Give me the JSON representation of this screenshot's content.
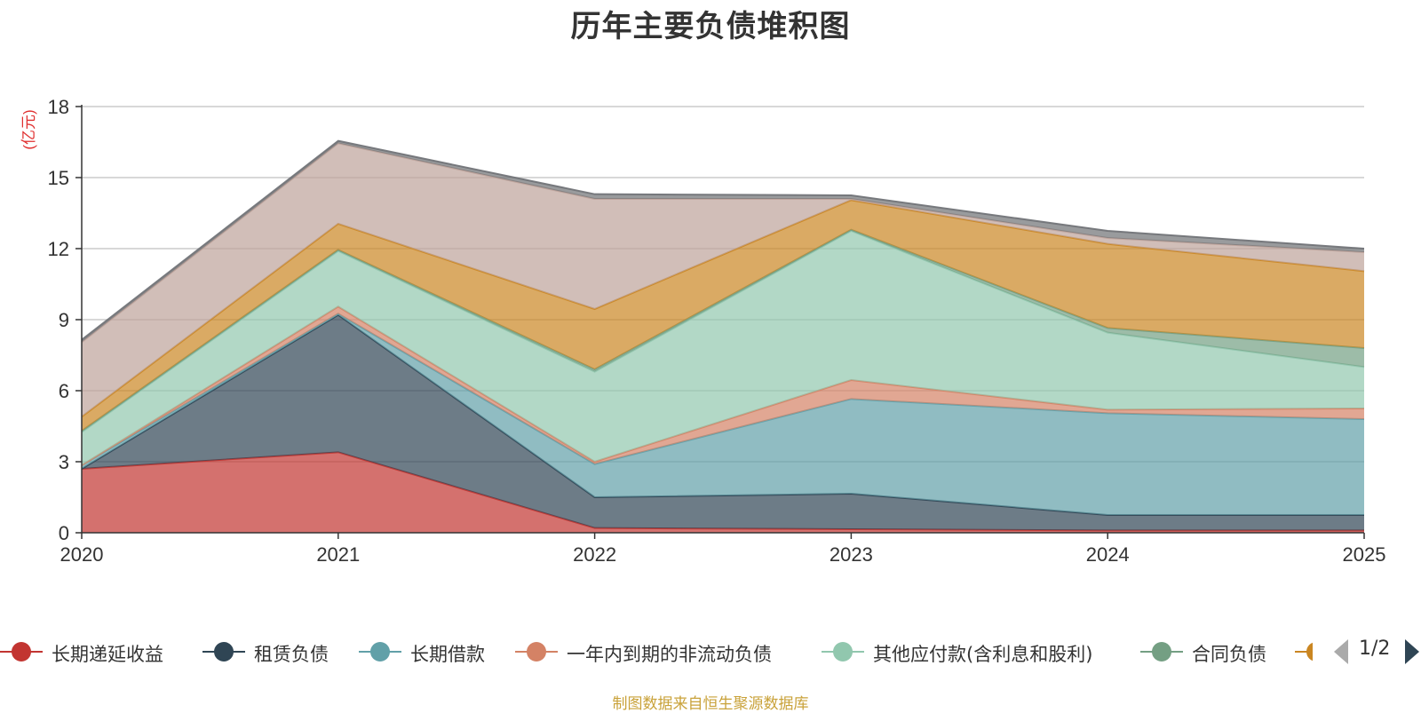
{
  "chart_data": {
    "type": "area",
    "title": "历年主要负债堆积图",
    "ylabel": "(亿元)",
    "xlabel": "",
    "categories": [
      "2020",
      "2021",
      "2022",
      "2023",
      "2024",
      "2025"
    ],
    "ylim": [
      0,
      18
    ],
    "yticks": [
      0,
      3,
      6,
      9,
      12,
      15,
      18
    ],
    "stacked": true,
    "grid": true,
    "series": [
      {
        "name": "长期递延收益",
        "color": "#c23531",
        "values": [
          2.7,
          3.4,
          0.2,
          0.15,
          0.1,
          0.1
        ]
      },
      {
        "name": "租赁负债",
        "color": "#2f4554",
        "values": [
          0.0,
          5.8,
          1.3,
          1.5,
          0.65,
          0.65
        ]
      },
      {
        "name": "长期借款",
        "color": "#61a0a8",
        "values": [
          0.15,
          0.05,
          1.4,
          4.0,
          4.3,
          4.05
        ]
      },
      {
        "name": "一年内到期的非流动负债",
        "color": "#d48265",
        "values": [
          0.0,
          0.3,
          0.1,
          0.8,
          0.15,
          0.45
        ]
      },
      {
        "name": "其他应付款(含利息和股利)",
        "color": "#91c7ae",
        "values": [
          1.4,
          2.35,
          3.8,
          6.3,
          3.25,
          1.75
        ]
      },
      {
        "name": "合同负债",
        "color": "#749f83",
        "values": [
          0.05,
          0.05,
          0.1,
          0.05,
          0.2,
          0.8
        ]
      },
      {
        "color": "#ca8622",
        "values": [
          0.6,
          1.1,
          2.55,
          1.25,
          3.55,
          3.25
        ]
      },
      {
        "color": "#bda29a",
        "values": [
          3.15,
          3.4,
          4.65,
          0.05,
          0.25,
          0.8
        ]
      },
      {
        "color": "#6e7074",
        "values": [
          0.1,
          0.1,
          0.2,
          0.15,
          0.3,
          0.15
        ]
      }
    ]
  },
  "legend": {
    "page_indicator": "1/2"
  },
  "source_note": "制图数据来自恒生聚源数据库",
  "colors": {
    "axis": "#333333",
    "grid": "#cccccc",
    "ylabel": "#e03030",
    "source": "#c9a23a"
  }
}
